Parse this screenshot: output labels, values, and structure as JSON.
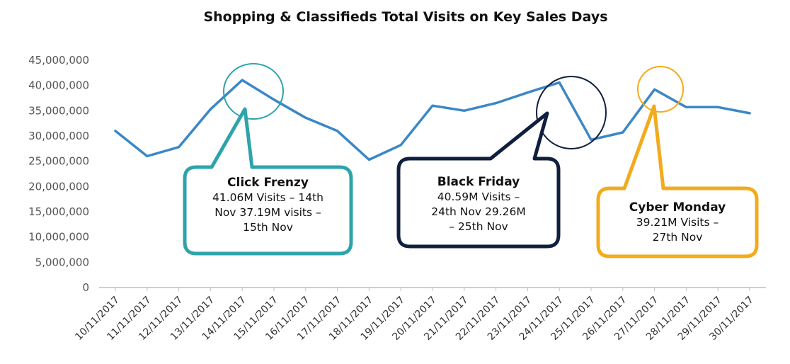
{
  "chart_data": {
    "type": "line",
    "title": "Shopping & Classifieds Total Visits on Key Sales Days",
    "xlabel": "",
    "ylabel": "",
    "ylim": [
      0,
      45000000
    ],
    "yticks": [
      "0",
      "5,000,000",
      "10,000,000",
      "15,000,000",
      "20,000,000",
      "25,000,000",
      "30,000,000",
      "35,000,000",
      "40,000,000",
      "45,000,000"
    ],
    "grid": false,
    "legend": "none",
    "categories": [
      "10/11/2017",
      "11/11/2017",
      "12/11/2017",
      "13/11/2017",
      "14/11/2017",
      "15/11/2017",
      "16/11/2017",
      "17/11/2017",
      "18/11/2017",
      "19/11/2017",
      "20/11/2017",
      "21/11/2017",
      "22/11/2017",
      "23/11/2017",
      "24/11/2017",
      "25/11/2017",
      "26/11/2017",
      "27/11/2017",
      "28/11/2017",
      "29/11/2017",
      "30/11/2017"
    ],
    "series": [
      {
        "color": "#3a87c8",
        "values": [
          31000000,
          26000000,
          27800000,
          35300000,
          41060000,
          37190000,
          33600000,
          31000000,
          25300000,
          28200000,
          36000000,
          35000000,
          36500000,
          38600000,
          40590000,
          29260000,
          30700000,
          39210000,
          35700000,
          35700000,
          34500000
        ]
      }
    ],
    "annotations": [
      {
        "id": "click-frenzy",
        "title": "Click Frenzy",
        "lines": [
          "41.06M Visits – 14th",
          "Nov 37.19M visits –",
          "15th Nov"
        ],
        "color": "#2ea3ab"
      },
      {
        "id": "black-friday",
        "title": "Black Friday",
        "lines": [
          "40.59M Visits –",
          "24th Nov 29.26M",
          "– 25th Nov"
        ],
        "color": "#0f1f3d"
      },
      {
        "id": "cyber-monday",
        "title": "Cyber Monday",
        "lines": [
          "39.21M Visits –",
          "27th Nov"
        ],
        "color": "#f2ab1c"
      }
    ]
  }
}
